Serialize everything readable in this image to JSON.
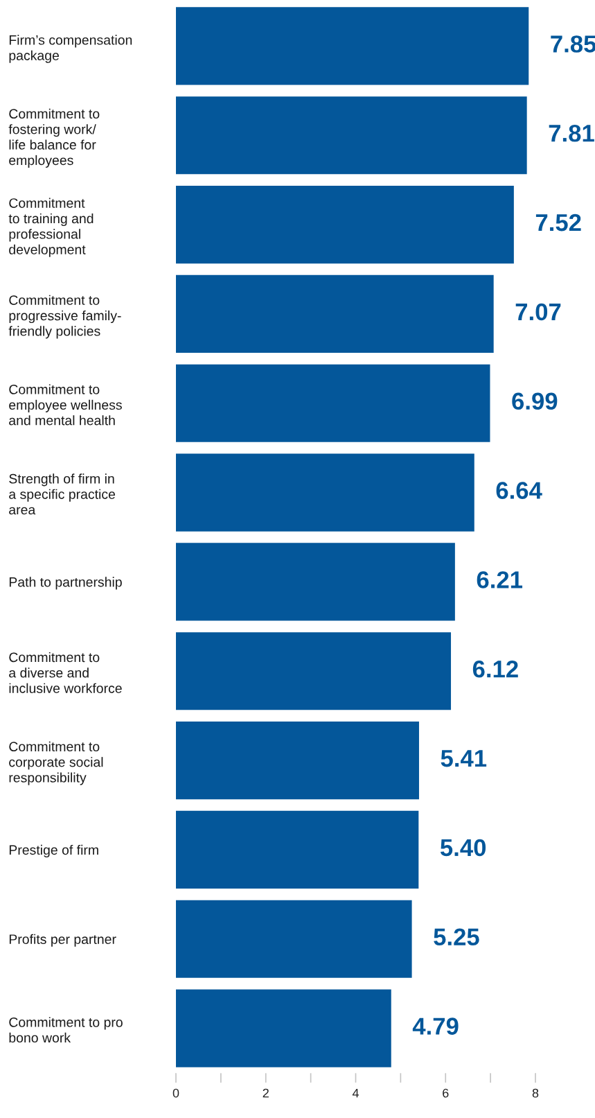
{
  "chart_data": {
    "type": "bar",
    "orientation": "horizontal",
    "categories": [
      "Firm’s compensation\npackage",
      "Commitment to\nfostering work/\nlife balance for\nemployees",
      "Commitment\nto training and\nprofessional\ndevelopment",
      "Commitment to\nprogressive family-\nfriendly policies",
      "Commitment to\nemployee wellness\nand mental health",
      "Strength of firm in\na specific practice\narea",
      "Path to partnership",
      "Commitment to\na diverse and\ninclusive workforce",
      "Commitment to\ncorporate social\nresponsibility",
      "Prestige of firm",
      "Profits per partner",
      "Commitment to pro\nbono work"
    ],
    "values": [
      7.85,
      7.81,
      7.52,
      7.07,
      6.99,
      6.64,
      6.21,
      6.12,
      5.41,
      5.4,
      5.25,
      4.79
    ],
    "value_labels": [
      "7.85",
      "7.81",
      "7.52",
      "7.07",
      "6.99",
      "6.64",
      "6.21",
      "6.12",
      "5.41",
      "5.40",
      "5.25",
      "4.79"
    ],
    "color": "#04579a",
    "xlim": [
      0,
      8
    ],
    "xticks": [
      0,
      {
        "value": 1,
        "label": null
      },
      2,
      {
        "value": 3,
        "label": null
      },
      4,
      {
        "value": 5,
        "label": null
      },
      6,
      {
        "value": 7,
        "label": null
      },
      8
    ],
    "grid": false,
    "legend": false
  }
}
